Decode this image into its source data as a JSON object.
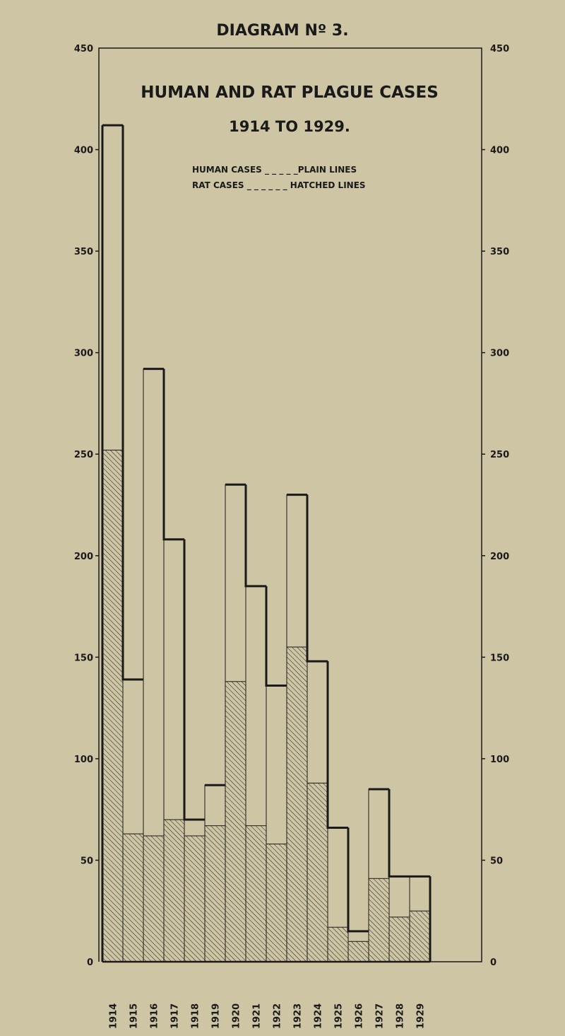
{
  "chart_data": {
    "type": "bar",
    "header": "DIAGRAM Nº 3.",
    "title": "HUMAN AND RAT PLAGUE CASES",
    "subtitle": "1914 TO 1929.",
    "legend": [
      {
        "label": "HUMAN CASES _ _ _ _ _PLAIN LINES",
        "style": "plain"
      },
      {
        "label": "RAT CASES _ _ _ _ _ _ HATCHED LINES",
        "style": "hatched"
      }
    ],
    "legend_placement": "top-center",
    "categories": [
      "1914",
      "1915",
      "1916",
      "1917",
      "1918",
      "1919",
      "1920",
      "1921",
      "1922",
      "1923",
      "1924",
      "1925",
      "1926",
      "1927",
      "1928",
      "1929"
    ],
    "series": [
      {
        "name": "HUMAN CASES",
        "style": "plain",
        "values": [
          412,
          139,
          292,
          208,
          70,
          87,
          235,
          185,
          136,
          230,
          148,
          66,
          15,
          85,
          42,
          42
        ]
      },
      {
        "name": "RAT CASES",
        "style": "hatched",
        "values": [
          252,
          63,
          62,
          70,
          62,
          67,
          138,
          67,
          58,
          155,
          88,
          17,
          10,
          41,
          22,
          25
        ]
      }
    ],
    "ylim": [
      0,
      450
    ],
    "yticks": [
      "0",
      "50",
      "100",
      "150",
      "200",
      "250",
      "300",
      "350",
      "400",
      "450"
    ],
    "ytick_values": [
      0,
      50,
      100,
      150,
      200,
      250,
      300,
      350,
      400,
      450
    ],
    "grid": false,
    "colors": {
      "ink": "#1a1a1a",
      "paper": "#cdc5a3"
    }
  }
}
